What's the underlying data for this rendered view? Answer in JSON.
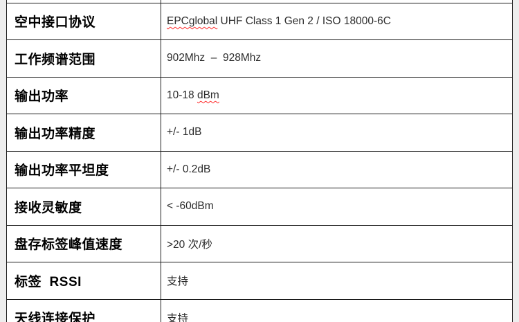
{
  "colors": {
    "page_background": "#ededed",
    "cell_background": "#ffffff",
    "border": "#1b1b1b",
    "label_text": "#000000",
    "value_text": "#2b2b2b",
    "spellcheck_underline": "#ff2a2a"
  },
  "table": {
    "description": "RFID reader RF specification table, two columns, clipped at top and bottom",
    "rows": [
      {
        "label": "空中接口协议",
        "value": "EPCglobal UHF Class 1 Gen 2 / ISO 18000-6C",
        "value_parts": [
          {
            "text": "EPCglobal",
            "wavy": true
          },
          {
            "text": " UHF Class 1 Gen 2 / ISO 18000-6C",
            "wavy": false
          }
        ]
      },
      {
        "label": "工作频谱范围",
        "value": "902Mhz  –  928Mhz",
        "value_parts": [
          {
            "text": "902Mhz  –  928Mhz",
            "wavy": false
          }
        ]
      },
      {
        "label": "输出功率",
        "value": "10-18 dBm",
        "value_parts": [
          {
            "text": "10-18 ",
            "wavy": false
          },
          {
            "text": "dBm",
            "wavy": true
          }
        ]
      },
      {
        "label": "输出功率精度",
        "value": "+/- 1dB",
        "value_parts": [
          {
            "text": "+/- 1dB",
            "wavy": false
          }
        ]
      },
      {
        "label": "输出功率平坦度",
        "value": "+/- 0.2dB",
        "value_parts": [
          {
            "text": "+/- 0.2dB",
            "wavy": false
          }
        ]
      },
      {
        "label": "接收灵敏度",
        "value": "< -60dBm",
        "value_parts": [
          {
            "text": "< -60dBm",
            "wavy": false
          }
        ]
      },
      {
        "label": "盘存标签峰值速度",
        "value": ">20 次/秒",
        "value_parts": [
          {
            "text": ">20 次/秒",
            "wavy": false
          }
        ]
      },
      {
        "label": "标签  RSSI",
        "value": "支持",
        "value_parts": [
          {
            "text": "支持",
            "wavy": false
          }
        ]
      },
      {
        "label": "天线连接保护",
        "value": "支持",
        "value_parts": [
          {
            "text": "支持",
            "wavy": false
          }
        ]
      }
    ]
  }
}
